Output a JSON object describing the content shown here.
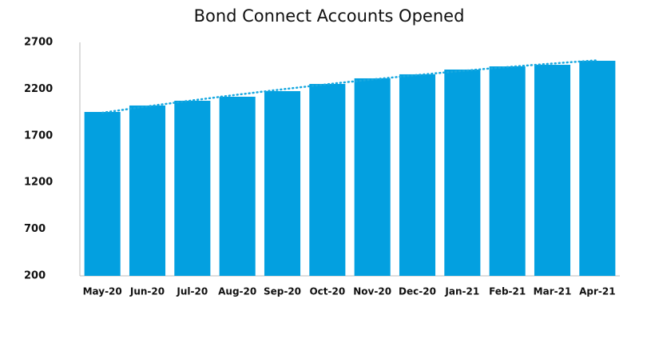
{
  "chart_data": {
    "type": "bar",
    "title": "Bond Connect Accounts Opened",
    "categories": [
      "May-20",
      "Jun-20",
      "Jul-20",
      "Aug-20",
      "Sep-20",
      "Oct-20",
      "Nov-20",
      "Dec-20",
      "Jan-21",
      "Feb-21",
      "Mar-21",
      "Apr-21"
    ],
    "values": [
      1955,
      2024,
      2075,
      2118,
      2178,
      2255,
      2315,
      2358,
      2409,
      2443,
      2460,
      2503
    ],
    "color": "#03a0e0",
    "ylim": [
      200,
      2700
    ],
    "yticks": [
      200,
      700,
      1200,
      1700,
      2200,
      2700
    ],
    "grid": false,
    "trendline": {
      "kind": "polynomial",
      "order": 2,
      "style": "dotted",
      "color": "#18a8e0"
    }
  }
}
